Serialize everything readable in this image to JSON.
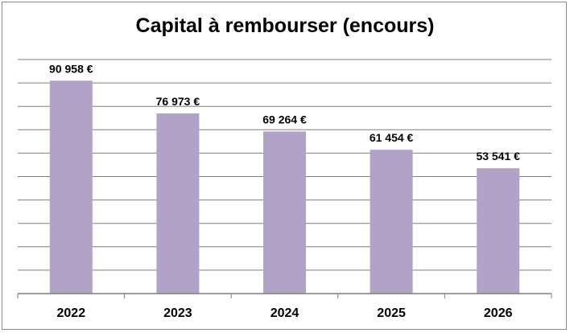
{
  "chart_data": {
    "type": "bar",
    "title": "Capital à rembourser (encours)",
    "categories": [
      "2022",
      "2023",
      "2024",
      "2025",
      "2026"
    ],
    "values": [
      90958,
      76973,
      69264,
      61454,
      53541
    ],
    "data_labels": [
      "90 958 €",
      "76 973 €",
      "69 264 €",
      "61 454 €",
      "53 541 €"
    ],
    "xlabel": "",
    "ylabel": "",
    "ylim": [
      0,
      100000
    ],
    "grid": true,
    "legend": "none",
    "bar_color": "#b2a2c7",
    "grid_color": "#7f7f7f"
  }
}
